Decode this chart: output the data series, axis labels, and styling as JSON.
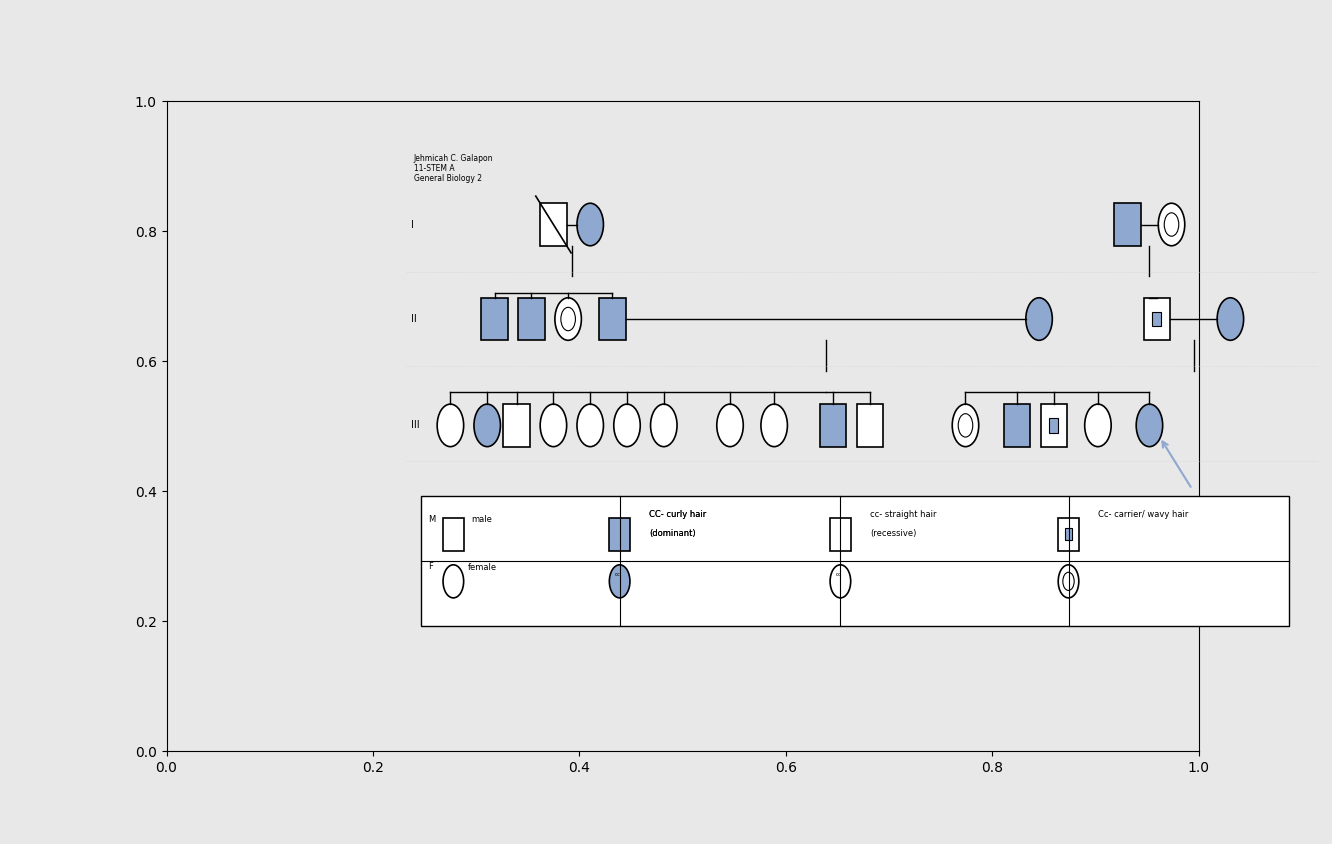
{
  "title_text": "Jehmicah C. Galapon\n11-STEM A\nGeneral Biology 2",
  "bg_color": "#ffffff",
  "grid_color": "#d0d0d0",
  "border_color": "#000000",
  "filled_color": "#8fa8d0",
  "light_filled": "#b8c8e8",
  "canvas_bg": "#e8e8e8",
  "panel_bg": "#ffffff",
  "gen_labels": [
    "I",
    "II",
    "III"
  ],
  "legend": {
    "male_label": "male",
    "female_label": "female",
    "cc_label": "CC- curly hair\n(dominant)",
    "cc_lower_label": "cc- straight hair\n(recessive)",
    "cc_carrier_label": "Cc- carrier/ wavy hair"
  }
}
